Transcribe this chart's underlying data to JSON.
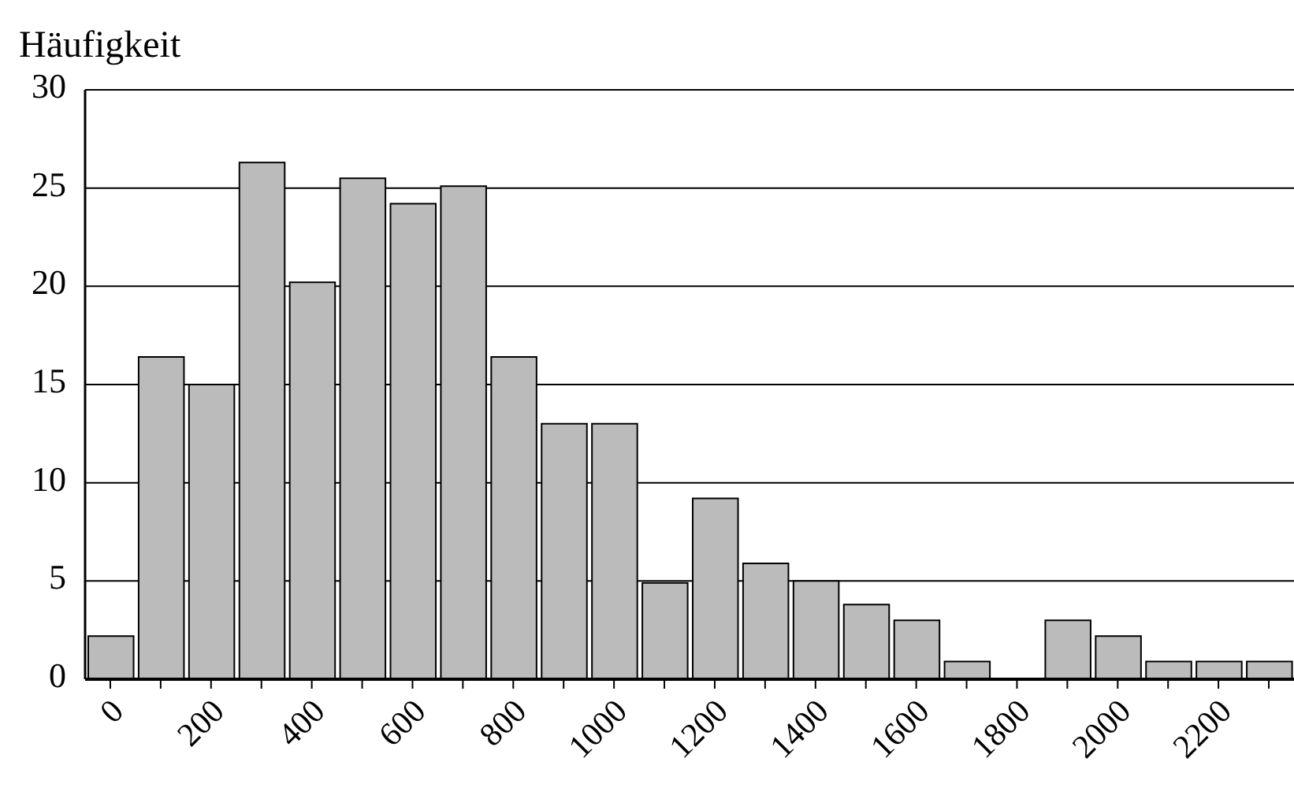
{
  "chart_data": {
    "type": "histogram",
    "ylabel": "Häufigkeit",
    "bins": [
      -50,
      50,
      150,
      250,
      350,
      450,
      550,
      650,
      750,
      850,
      950,
      1050,
      1150,
      1250,
      1350,
      1450,
      1550,
      1650,
      1750,
      1850,
      1950,
      2050,
      2150,
      2250,
      2350
    ],
    "values": [
      2.2,
      16.4,
      15,
      26.3,
      20.2,
      25.5,
      24.2,
      25.1,
      16.4,
      13,
      13,
      4.9,
      9.2,
      5.9,
      5,
      3.8,
      3,
      0.9,
      0,
      3,
      2.2,
      0.9,
      0.9,
      0.9
    ],
    "color": "#bbbbbb",
    "xlim": [
      -50,
      2350
    ],
    "xticks": [
      0,
      {
        "value": 100,
        "label": null
      },
      200,
      {
        "value": 300,
        "label": null
      },
      400,
      {
        "value": 500,
        "label": null
      },
      600,
      {
        "value": 700,
        "label": null
      },
      800,
      {
        "value": 900,
        "label": null
      },
      1000,
      {
        "value": 1100,
        "label": null
      },
      1200,
      {
        "value": 1300,
        "label": null
      },
      1400,
      {
        "value": 1500,
        "label": null
      },
      1600,
      {
        "value": 1700,
        "label": null
      },
      1800,
      {
        "value": 1900,
        "label": null
      },
      2000,
      {
        "value": 2100,
        "label": null
      },
      2200,
      {
        "value": 2300,
        "label": null
      }
    ],
    "ylim": [
      0,
      30
    ],
    "yticks": [
      0,
      5,
      10,
      15,
      20,
      25,
      30
    ],
    "grid": "y"
  }
}
